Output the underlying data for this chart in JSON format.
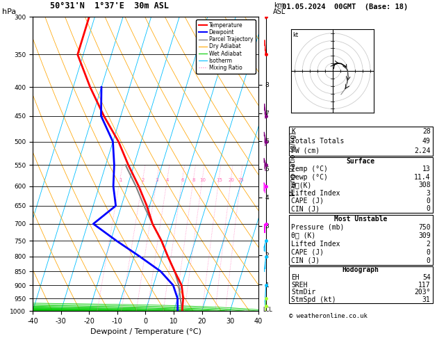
{
  "title_left": "50°31'N  1°37'E  30m ASL",
  "title_right": "01.05.2024  00GMT  (Base: 18)",
  "xlabel": "Dewpoint / Temperature (°C)",
  "ylabel_left": "hPa",
  "pressure_levels": [
    300,
    350,
    400,
    450,
    500,
    550,
    600,
    650,
    700,
    750,
    800,
    850,
    900,
    950,
    1000
  ],
  "km_labels": [
    "8",
    "7",
    "6",
    "5",
    "4",
    "3",
    "2",
    "1"
  ],
  "km_pressures": [
    396,
    445,
    499,
    559,
    628,
    706,
    795,
    898
  ],
  "mixing_ratio_labels": [
    "1",
    "2",
    "3",
    "4",
    "6",
    "8",
    "10",
    "15",
    "20",
    "25"
  ],
  "mixing_ratio_values_gkg": [
    1,
    2,
    3,
    4,
    6,
    8,
    10,
    15,
    20,
    25
  ],
  "mixing_ratio_label_press": 580,
  "temp_profile_pressure": [
    1000,
    950,
    900,
    850,
    800,
    750,
    700,
    650,
    600,
    550,
    500,
    450,
    400,
    350,
    300
  ],
  "temp_profile_temp": [
    13,
    12,
    10,
    6,
    2,
    -2,
    -7,
    -11,
    -16,
    -22,
    -28,
    -36,
    -44,
    -52,
    -52
  ],
  "dewp_profile_pressure": [
    1000,
    950,
    900,
    850,
    800,
    750,
    700,
    650,
    600,
    550,
    500,
    450,
    400
  ],
  "dewp_profile_dewp": [
    11.4,
    10,
    7,
    1,
    -8,
    -18,
    -28,
    -22,
    -25,
    -27,
    -30,
    -37,
    -40
  ],
  "parcel_profile_pressure": [
    1000,
    950,
    900,
    850,
    800,
    750,
    700,
    650,
    600,
    550
  ],
  "parcel_profile_temp": [
    13,
    11,
    9,
    6,
    2,
    -2,
    -7,
    -12,
    -17,
    -23
  ],
  "isotherm_color": "#00bfff",
  "dry_adiabat_color": "#FFA500",
  "wet_adiabat_color": "#00cc00",
  "mixing_ratio_color": "#ff69b4",
  "temp_color": "#ff0000",
  "dewp_color": "#0000ff",
  "parcel_color": "#808080",
  "K": 28,
  "TT": 49,
  "PW": "2.24",
  "surf_temp": 13,
  "surf_dewp": 11.4,
  "surf_theta_e": 308,
  "surf_li": 3,
  "surf_cape": 0,
  "surf_cin": 0,
  "mu_pressure": 750,
  "mu_theta_e": 309,
  "mu_li": 2,
  "mu_cape": 0,
  "mu_cin": 0,
  "EH": 54,
  "SREH": 117,
  "StmDir": "203°",
  "StmSpd_kt": 31,
  "wind_barb_pressures": [
    300,
    350,
    450,
    500,
    550,
    600,
    700,
    750,
    800,
    900,
    950,
    980
  ],
  "wind_barb_colors": [
    "#ff0000",
    "#ff0000",
    "#800080",
    "#800080",
    "#800080",
    "#ff00ff",
    "#ff00ff",
    "#00bfff",
    "#00bfff",
    "#00bfff",
    "#adff2f",
    "#adff2f"
  ],
  "wind_barb_dirs": [
    320,
    320,
    310,
    300,
    290,
    280,
    270,
    250,
    230,
    210,
    200,
    195
  ],
  "wind_barb_spds": [
    35,
    33,
    30,
    28,
    25,
    22,
    20,
    18,
    15,
    12,
    10,
    8
  ]
}
